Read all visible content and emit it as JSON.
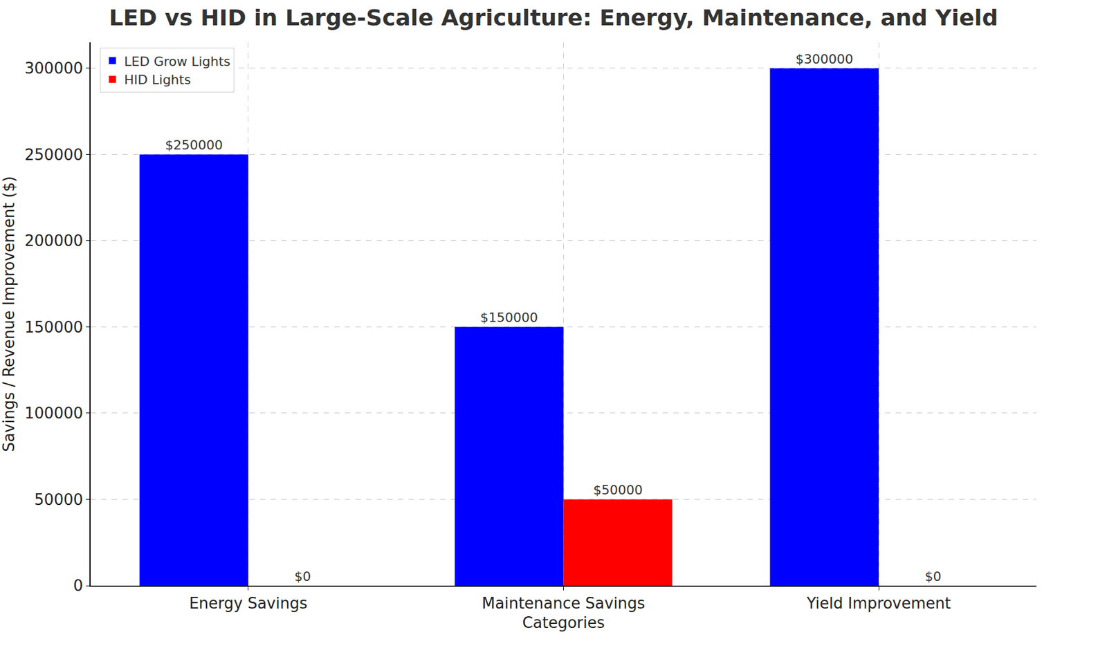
{
  "chart_data": {
    "type": "bar",
    "title": "LED vs HID in Large-Scale Agriculture: Energy, Maintenance, and Yield",
    "x_label": "Categories",
    "y_label": "Savings / Revenue Improvement ($)",
    "categories": [
      "Energy Savings",
      "Maintenance Savings",
      "Yield Improvement"
    ],
    "series": [
      {
        "name": "LED Grow Lights",
        "color": "#0000ff",
        "values": [
          250000,
          150000,
          300000
        ],
        "value_labels": [
          "$250000",
          "$150000",
          "$300000"
        ]
      },
      {
        "name": "HID Lights",
        "color": "#ff0000",
        "values": [
          0,
          50000,
          0
        ],
        "value_labels": [
          "$0",
          "$50000",
          "$0"
        ]
      }
    ],
    "ylim": [
      0,
      315000
    ],
    "yticks": [
      0,
      50000,
      100000,
      150000,
      200000,
      250000,
      300000
    ],
    "grid": true,
    "legend": "upper left",
    "data_labels": true
  }
}
